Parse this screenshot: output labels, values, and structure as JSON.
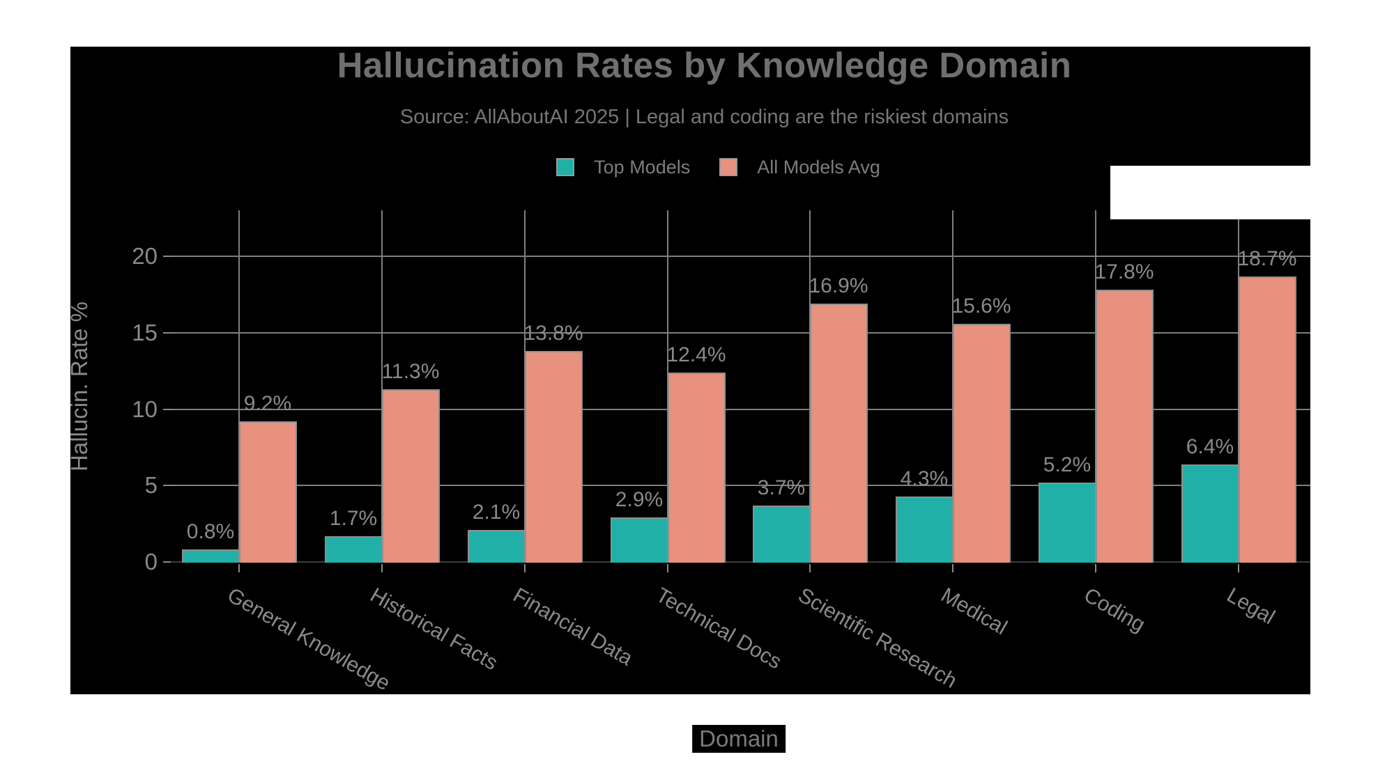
{
  "header": {
    "title": "Hallucination Rates by Knowledge Domain",
    "subtitle": "Source: AllAboutAI 2025 | Legal and coding are the riskiest domains"
  },
  "legend": {
    "items": [
      {
        "label": "Top Models",
        "color": "#21b0a8"
      },
      {
        "label": "All Models Avg",
        "color": "#e8917e"
      }
    ]
  },
  "axes": {
    "xlabel": "Domain",
    "ylabel": "Hallucin. Rate %",
    "ytick_labels": [
      "0",
      "5",
      "10",
      "15",
      "20"
    ]
  },
  "chart_data": {
    "type": "bar",
    "title": "Hallucination Rates by Knowledge Domain",
    "subtitle": "Source: AllAboutAI 2025 | Legal and coding are the riskiest domains",
    "xlabel": "Domain",
    "ylabel": "Hallucin. Rate %",
    "categories": [
      "General Knowledge",
      "Historical Facts",
      "Financial Data",
      "Technical Docs",
      "Scientific Research",
      "Medical",
      "Coding",
      "Legal"
    ],
    "series": [
      {
        "name": "Top Models",
        "color": "#21b0a8",
        "values": [
          0.8,
          1.7,
          2.1,
          2.9,
          3.7,
          4.3,
          5.2,
          6.4
        ],
        "labels": [
          "0.8%",
          "1.7%",
          "2.1%",
          "2.9%",
          "3.7%",
          "4.3%",
          "5.2%",
          "6.4%"
        ]
      },
      {
        "name": "All Models Avg",
        "color": "#e8917e",
        "values": [
          9.2,
          11.3,
          13.8,
          12.4,
          16.9,
          15.6,
          17.8,
          18.7
        ],
        "labels": [
          "9.2%",
          "11.3%",
          "13.8%",
          "12.4%",
          "16.9%",
          "15.6%",
          "17.8%",
          "18.7%"
        ]
      }
    ],
    "yticks": [
      0,
      5,
      10,
      15,
      20
    ],
    "ylim": [
      0,
      23
    ],
    "grid": true,
    "legend_position": "top-center",
    "text_color": "#8a8a8a",
    "grid_color": "#7f7f7f",
    "background_color": "#000000"
  }
}
